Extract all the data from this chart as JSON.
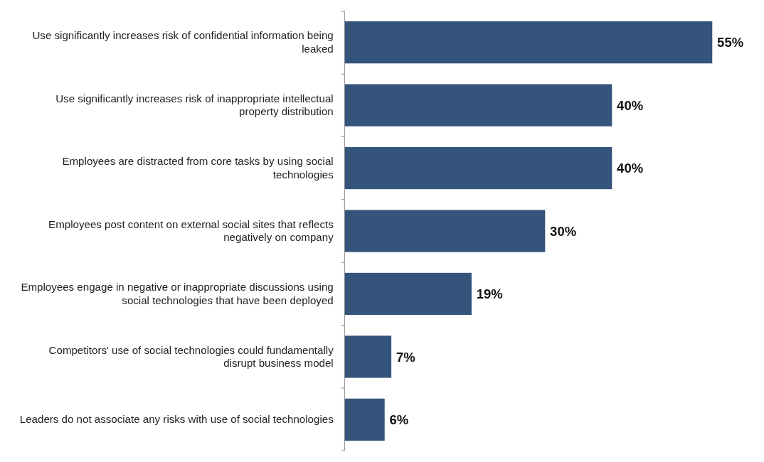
{
  "chart_data": {
    "type": "bar",
    "orientation": "horizontal",
    "categories": [
      "Use significantly increases risk of confidential information being leaked",
      "Use significantly increases risk of inappropriate intellectual property distribution",
      "Employees are distracted from core tasks by using social technologies",
      "Employees post content on external social sites that reflects negatively on company",
      "Employees engage in negative or inappropriate discussions using social technologies that have been deployed",
      "Competitors' use of social technologies could fundamentally disrupt business model",
      "Leaders do not associate any risks with use of social technologies"
    ],
    "values": [
      55,
      40,
      40,
      30,
      19,
      7,
      6
    ],
    "color": "#35547c",
    "value_labels": [
      "55%",
      "40%",
      "40%",
      "30%",
      "19%",
      "7%",
      "6%"
    ]
  }
}
